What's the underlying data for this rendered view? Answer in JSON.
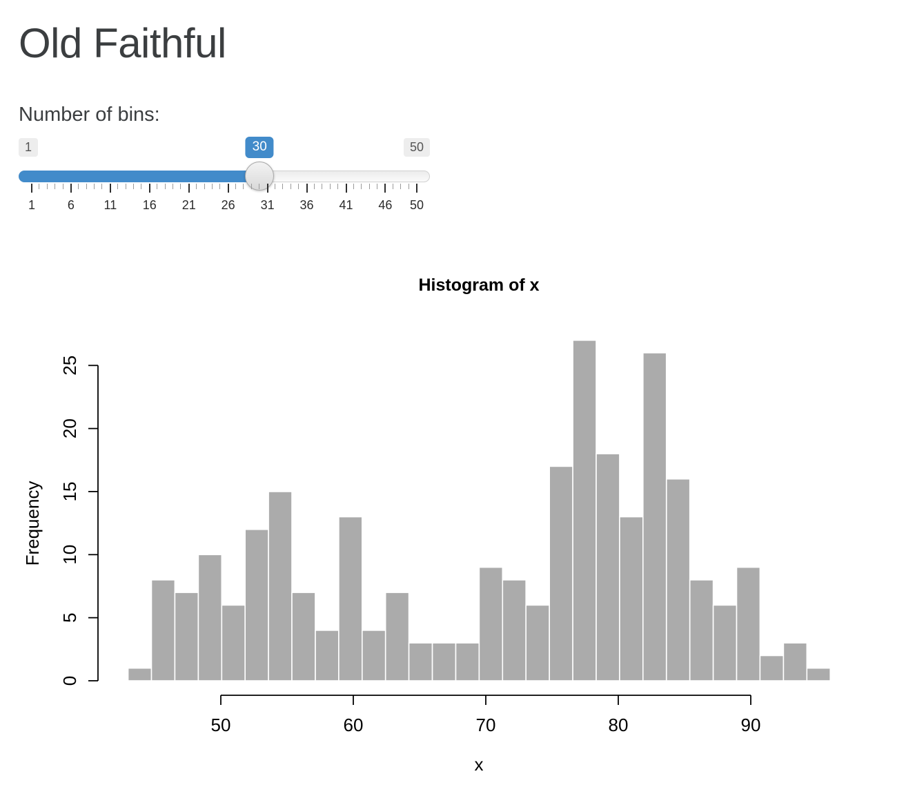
{
  "page": {
    "title": "Old Faithful"
  },
  "slider": {
    "label": "Number of bins:",
    "min": 1,
    "max": 50,
    "value": 30,
    "major_ticks": [
      1,
      6,
      11,
      16,
      21,
      26,
      31,
      36,
      41,
      46,
      50
    ],
    "accent_color": "#428bca"
  },
  "chart_data": {
    "type": "bar",
    "subtype": "histogram",
    "title": "Histogram of x",
    "xlabel": "x",
    "ylabel": "Frequency",
    "x_ticks": [
      50,
      60,
      70,
      80,
      90
    ],
    "y_ticks": [
      0,
      5,
      10,
      15,
      20,
      25
    ],
    "xlim_data": [
      43,
      96
    ],
    "ylim": [
      0,
      25
    ],
    "bins": 30,
    "counts": [
      1,
      8,
      7,
      10,
      6,
      12,
      15,
      7,
      4,
      13,
      4,
      7,
      3,
      3,
      3,
      9,
      8,
      6,
      17,
      27,
      18,
      13,
      26,
      16,
      8,
      6,
      9,
      2,
      3,
      1
    ],
    "grid": false,
    "legend": false,
    "bar_fill": "#ABABAB",
    "bar_stroke": "#FFFFFF",
    "axis_color": "#000000"
  }
}
